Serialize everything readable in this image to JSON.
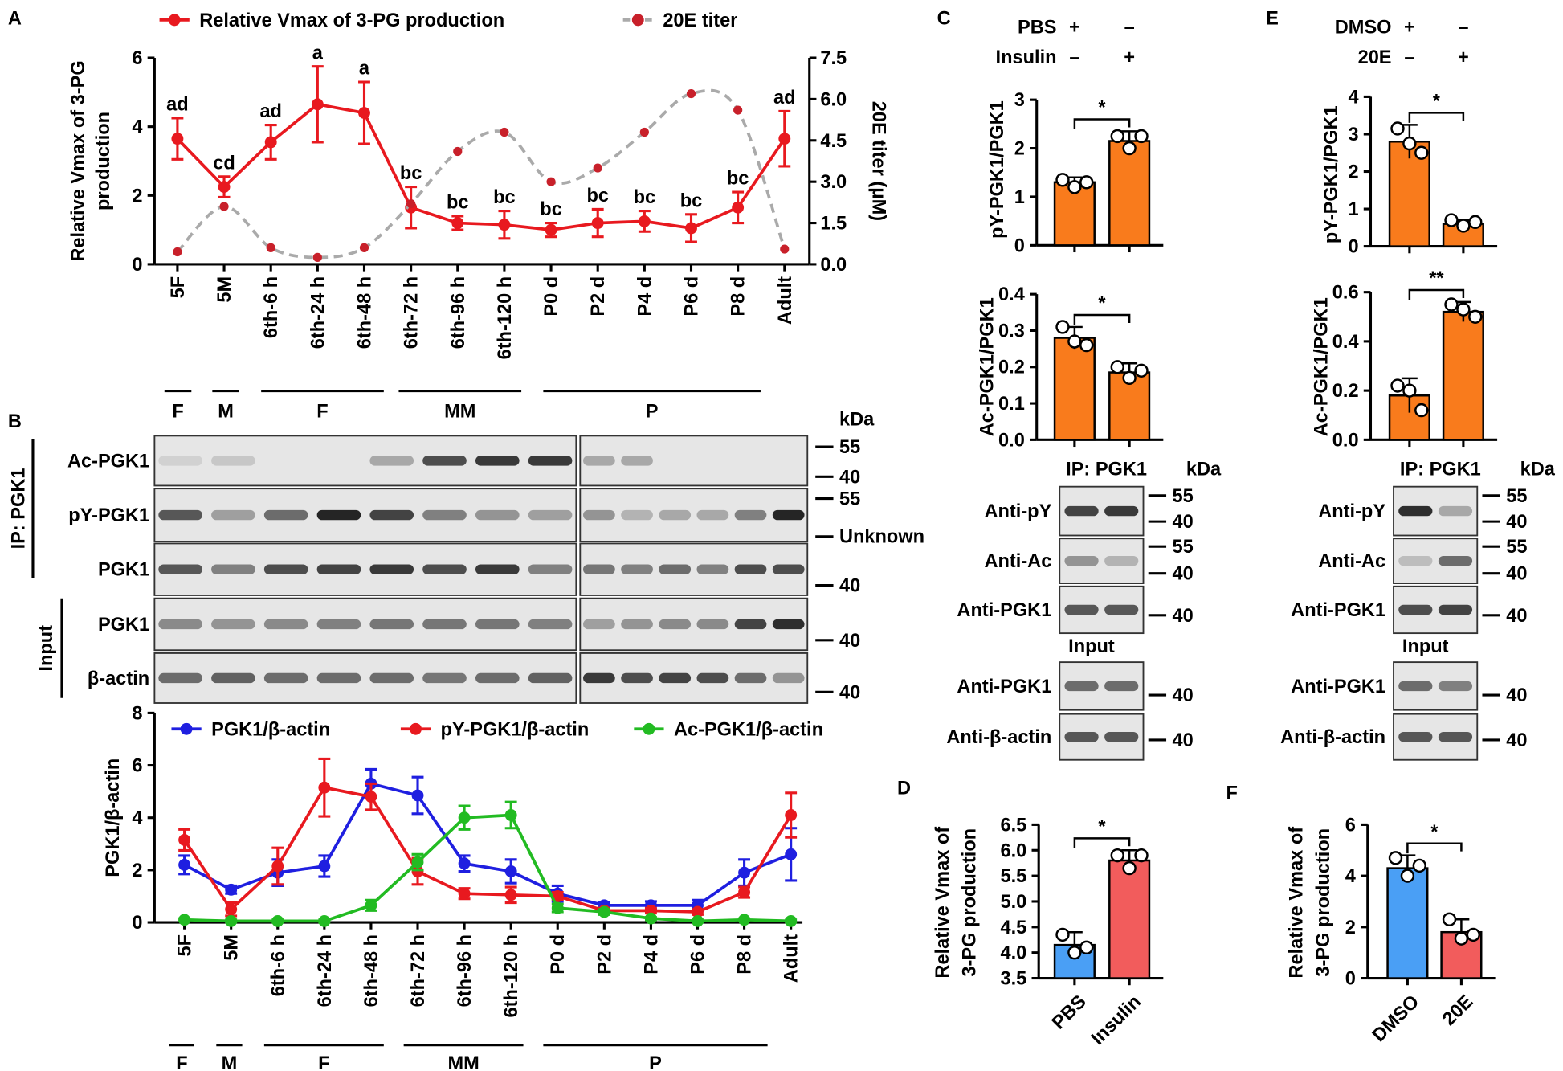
{
  "panel_labels": [
    "A",
    "B",
    "C",
    "D",
    "E",
    "F"
  ],
  "chart_data": [
    {
      "type": "line",
      "categories": [
        "5F",
        "5M",
        "6th-6 h",
        "6th-24 h",
        "6th-48 h",
        "6th-72 h",
        "6th-96 h",
        "6th-120 h",
        "P0 d",
        "P2 d",
        "P4 d",
        "P6 d",
        "P8 d",
        "Adult"
      ],
      "series": [
        {
          "name": "Relative Vmax of 3-PG production",
          "color": "#e8191f",
          "values": [
            3.65,
            2.25,
            3.55,
            4.65,
            4.4,
            1.65,
            1.2,
            1.15,
            1.0,
            1.2,
            1.25,
            1.05,
            1.65,
            3.65
          ],
          "errors": [
            0.6,
            0.3,
            0.5,
            1.1,
            0.9,
            0.6,
            0.2,
            0.4,
            0.2,
            0.4,
            0.3,
            0.4,
            0.45,
            0.8
          ]
        },
        {
          "name": "20E titer",
          "color": "#aaaaaa",
          "marker_color": "#c8202a",
          "line_style": "dashed",
          "smooth": true,
          "axis": "y2",
          "values": [
            0.45,
            2.1,
            0.6,
            0.25,
            0.6,
            2.2,
            4.1,
            4.8,
            3.0,
            3.5,
            4.8,
            6.2,
            5.6,
            0.55
          ]
        }
      ],
      "annotations": [
        "ad",
        "cd",
        "ad",
        "a",
        "a",
        "bc",
        "bc",
        "bc",
        "bc",
        "bc",
        "bc",
        "bc",
        "bc",
        "ad"
      ],
      "ylabel": [
        "Relative Vmax of 3-PG",
        "production"
      ],
      "y2label": "20E titer (μM)",
      "ylim": [
        0,
        6
      ],
      "yticks": [
        0,
        2,
        4,
        6
      ],
      "y2lim": [
        0,
        7.5
      ],
      "y2ticks": [
        {
          "value": 0,
          "label": "0.0"
        },
        1.5,
        {
          "value": 3,
          "label": "3.0"
        },
        4.5,
        {
          "value": 6,
          "label": "6.0"
        },
        7.5
      ],
      "group_labels": [
        "F",
        "M",
        "F",
        "MM",
        "P"
      ]
    },
    {
      "type": "line",
      "categories": [
        "5F",
        "5M",
        "6th-6 h",
        "6th-24 h",
        "6th-48 h",
        "6th-72 h",
        "6th-96 h",
        "6th-120 h",
        "P0 d",
        "P2 d",
        "P4 d",
        "P6 d",
        "P8 d",
        "Adult"
      ],
      "series": [
        {
          "name": "PGK1/β-actin",
          "color": "#1f1fe0",
          "values": [
            2.2,
            1.25,
            1.9,
            2.15,
            5.3,
            4.85,
            2.25,
            1.95,
            1.1,
            0.65,
            0.65,
            0.65,
            1.9,
            2.6
          ],
          "errors": [
            0.35,
            0.15,
            0.5,
            0.4,
            0.55,
            0.7,
            0.3,
            0.45,
            0.3,
            0.1,
            0.15,
            0.2,
            0.5,
            1.0
          ]
        },
        {
          "name": "pY-PGK1/β-actin",
          "color": "#e8191f",
          "values": [
            3.15,
            0.5,
            2.15,
            5.15,
            4.8,
            1.95,
            1.1,
            1.05,
            1.0,
            0.45,
            0.45,
            0.4,
            1.15,
            4.1
          ],
          "errors": [
            0.4,
            0.25,
            0.7,
            1.1,
            0.5,
            0.5,
            0.2,
            0.3,
            0.15,
            0.1,
            0.1,
            0.1,
            0.2,
            0.85
          ]
        },
        {
          "name": "Ac-PGK1/β-actin",
          "color": "#22bb22",
          "values": [
            0.1,
            0.05,
            0.05,
            0.05,
            0.65,
            2.3,
            4.0,
            4.1,
            0.55,
            0.4,
            0.15,
            0.05,
            0.1,
            0.05
          ],
          "errors": [
            0.05,
            0.05,
            0.05,
            0.05,
            0.2,
            0.3,
            0.45,
            0.5,
            0.15,
            0.1,
            0.05,
            0.05,
            0.05,
            0.05
          ]
        }
      ],
      "ylabel": [
        "PGK1/β-actin"
      ],
      "ylim": [
        0,
        8
      ],
      "yticks": [
        0,
        2,
        4,
        6,
        8
      ],
      "group_labels": [
        "F",
        "M",
        "F",
        "MM",
        "P"
      ]
    },
    {
      "type": "bar",
      "values": [
        1.3,
        2.15
      ],
      "errors": [
        0.1,
        0.2
      ],
      "points": [
        [
          1.35,
          1.2,
          1.3
        ],
        [
          2.25,
          2.0,
          2.25
        ]
      ],
      "colors": [
        "#f97b1c",
        "#f97b1c"
      ],
      "significance": "*",
      "ylabel": [
        "pY-PGK1/PGK1"
      ],
      "ylim": [
        0,
        3
      ],
      "yticks": [
        0,
        1,
        2,
        3
      ],
      "conditions": [
        {
          "name": "PBS",
          "signs": [
            "+",
            "–"
          ]
        },
        {
          "name": "Insulin",
          "signs": [
            "–",
            "+"
          ]
        }
      ]
    },
    {
      "type": "bar",
      "values": [
        0.28,
        0.185
      ],
      "errors": [
        0.03,
        0.025
      ],
      "points": [
        [
          0.31,
          0.27,
          0.26
        ],
        [
          0.2,
          0.17,
          0.19
        ]
      ],
      "colors": [
        "#f97b1c",
        "#f97b1c"
      ],
      "significance": "*",
      "ylabel": [
        "Ac-PGK1/PGK1"
      ],
      "ylim": [
        0,
        0.4
      ],
      "yticks": [
        {
          "value": 0,
          "label": "0.0"
        },
        0.1,
        0.2,
        0.3,
        0.4
      ]
    },
    {
      "type": "bar",
      "categories": [
        "PBS",
        "Insulin"
      ],
      "values": [
        4.15,
        5.8
      ],
      "errors": [
        0.25,
        0.2
      ],
      "points": [
        [
          4.35,
          4.0,
          4.1
        ],
        [
          5.9,
          5.65,
          5.9
        ]
      ],
      "colors": [
        "#4a9ff5",
        "#f25c5c"
      ],
      "significance": "*",
      "ylabel": [
        "Relative Vmax of",
        "3-PG production"
      ],
      "ylim": [
        3.5,
        6.5
      ],
      "yticks": [
        3.5,
        {
          "value": 4,
          "label": "4.0"
        },
        4.5,
        {
          "value": 5,
          "label": "5.0"
        },
        5.5,
        {
          "value": 6,
          "label": "6.0"
        },
        6.5
      ]
    },
    {
      "type": "bar",
      "values": [
        2.8,
        0.6
      ],
      "errors": [
        0.45,
        0.1
      ],
      "points": [
        [
          3.15,
          2.75,
          2.5
        ],
        [
          0.7,
          0.55,
          0.65
        ]
      ],
      "colors": [
        "#f97b1c",
        "#f97b1c"
      ],
      "significance": "*",
      "ylabel": [
        "pY-PGK1/PGK1"
      ],
      "ylim": [
        0,
        4
      ],
      "yticks": [
        0,
        1,
        2,
        3,
        4
      ],
      "conditions": [
        {
          "name": "DMSO",
          "signs": [
            "+",
            "–"
          ]
        },
        {
          "name": "20E",
          "signs": [
            "–",
            "+"
          ]
        }
      ]
    },
    {
      "type": "bar",
      "values": [
        0.18,
        0.52
      ],
      "errors": [
        0.07,
        0.04
      ],
      "points": [
        [
          0.22,
          0.2,
          0.12
        ],
        [
          0.55,
          0.53,
          0.5
        ]
      ],
      "colors": [
        "#f97b1c",
        "#f97b1c"
      ],
      "significance": "**",
      "ylabel": [
        "Ac-PGK1/PGK1"
      ],
      "ylim": [
        0,
        0.6
      ],
      "yticks": [
        {
          "value": 0,
          "label": "0.0"
        },
        0.2,
        0.4,
        0.6
      ]
    },
    {
      "type": "bar",
      "categories": [
        "DMSO",
        "20E"
      ],
      "values": [
        4.3,
        1.8
      ],
      "errors": [
        0.5,
        0.5
      ],
      "points": [
        [
          4.7,
          4.0,
          4.4
        ],
        [
          2.3,
          1.55,
          1.7
        ]
      ],
      "colors": [
        "#4a9ff5",
        "#f25c5c"
      ],
      "significance": "*",
      "ylabel": [
        "Relative Vmax of",
        "3-PG production"
      ],
      "ylim": [
        0,
        6
      ],
      "yticks": [
        0,
        2,
        4,
        6
      ]
    }
  ],
  "blots": [
    {
      "group_labels": [
        "IP: PGK1",
        "Input"
      ],
      "rows": [
        "Ac-PGK1",
        "pY-PGK1",
        "PGK1",
        "PGK1",
        "β-actin"
      ],
      "kda_title": "kDa",
      "markers": [
        "55",
        "40",
        "55",
        "Unknown",
        "40",
        "40",
        "40"
      ]
    },
    {
      "title": "IP: PGK1",
      "kda_title": "kDa",
      "rows": [
        "Anti-pY",
        "Anti-Ac",
        "Anti-PGK1",
        "Anti-PGK1",
        "Anti-β-actin"
      ],
      "section": "Input",
      "markers": [
        "55",
        "40",
        "55",
        "40",
        "40",
        "40",
        "40"
      ]
    },
    {
      "title": "IP: PGK1",
      "kda_title": "kDa",
      "rows": [
        "Anti-pY",
        "Anti-Ac",
        "Anti-PGK1",
        "Anti-PGK1",
        "Anti-β-actin"
      ],
      "section": "Input",
      "markers": [
        "55",
        "40",
        "55",
        "40",
        "40",
        "40",
        "40"
      ]
    }
  ]
}
